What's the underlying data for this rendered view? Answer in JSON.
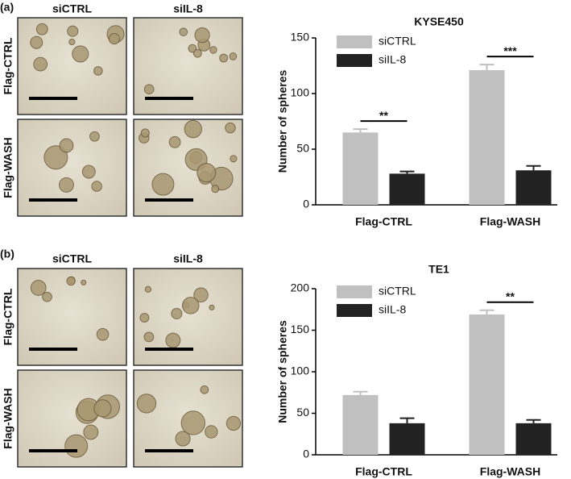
{
  "micrographs": [
    {
      "label": "(a)",
      "columns": [
        "siCTRL",
        "siIL-8"
      ],
      "rows": [
        "Flag-CTRL",
        "Flag-WASH"
      ]
    },
    {
      "label": "(b)",
      "columns": [
        "siCTRL",
        "siIL-8"
      ],
      "rows": [
        "Flag-CTRL",
        "Flag-WASH"
      ]
    }
  ],
  "chart_data": [
    {
      "type": "bar",
      "title": "KYSE450",
      "y_label": "Number of spheres",
      "categories": [
        "Flag-CTRL",
        "Flag-WASH"
      ],
      "series": [
        {
          "name": "siCTRL",
          "color": "#c0c0c0",
          "values": [
            65,
            121
          ],
          "errors": [
            3,
            5
          ]
        },
        {
          "name": "siIL-8",
          "color": "#222222",
          "values": [
            28,
            31
          ],
          "errors": [
            2,
            4
          ]
        }
      ],
      "ylim": [
        0,
        150
      ],
      "yticks": [
        0,
        50,
        100,
        150
      ],
      "annotations": [
        {
          "text": "**",
          "category": "Flag-CTRL"
        },
        {
          "text": "***",
          "category": "Flag-WASH"
        }
      ],
      "legend": "upper left"
    },
    {
      "type": "bar",
      "title": "TE1",
      "y_label": "Number of spheres",
      "categories": [
        "Flag-CTRL",
        "Flag-WASH"
      ],
      "series": [
        {
          "name": "siCTRL",
          "color": "#c0c0c0",
          "values": [
            72,
            169
          ],
          "errors": [
            4,
            5
          ]
        },
        {
          "name": "siIL-8",
          "color": "#222222",
          "values": [
            38,
            38
          ],
          "errors": [
            6,
            4
          ]
        }
      ],
      "ylim": [
        0,
        200
      ],
      "yticks": [
        0,
        50,
        100,
        150,
        200
      ],
      "annotations": [
        {
          "text": "**",
          "category": "Flag-WASH"
        }
      ],
      "legend": "upper left"
    }
  ]
}
